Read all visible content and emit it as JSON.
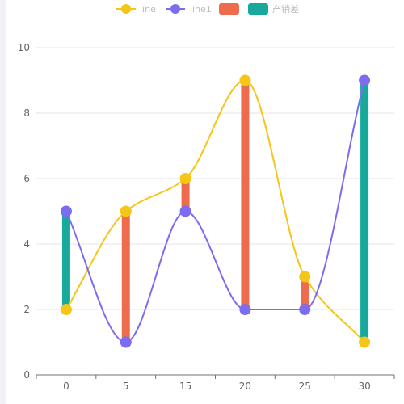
{
  "chart_data": {
    "type": "line",
    "categories": [
      "0",
      "5",
      "15",
      "20",
      "25",
      "30"
    ],
    "series": [
      {
        "name": "line",
        "type": "line",
        "smooth": true,
        "values": [
          2,
          5,
          6,
          9,
          3,
          1
        ]
      },
      {
        "name": "line1",
        "type": "line",
        "smooth": true,
        "values": [
          5,
          1,
          5,
          2,
          2,
          9
        ]
      }
    ],
    "range_bars": [
      {
        "name": "",
        "low": [
          null,
          1,
          5,
          2,
          2,
          null
        ],
        "high": [
          null,
          5,
          6,
          9,
          3,
          null
        ]
      },
      {
        "name": "产销差",
        "low": [
          2,
          null,
          null,
          null,
          null,
          1
        ],
        "high": [
          5,
          null,
          null,
          null,
          null,
          9
        ]
      }
    ],
    "legend": [
      "line",
      "line1",
      "",
      "产销差"
    ],
    "legend_position": "top-center",
    "y_ticks": [
      "0",
      "2",
      "4",
      "6",
      "8",
      "10"
    ],
    "ylim": [
      0,
      10
    ],
    "grid": true,
    "colors": {
      "line": "#fac858",
      "line_stroke": "#f5c518",
      "line1": "#7b6cf0",
      "bar_positive": "#ee6b4d",
      "bar_negative": "#17a99c",
      "grid": "#e6e6ee",
      "axis": "#6e7079"
    }
  }
}
